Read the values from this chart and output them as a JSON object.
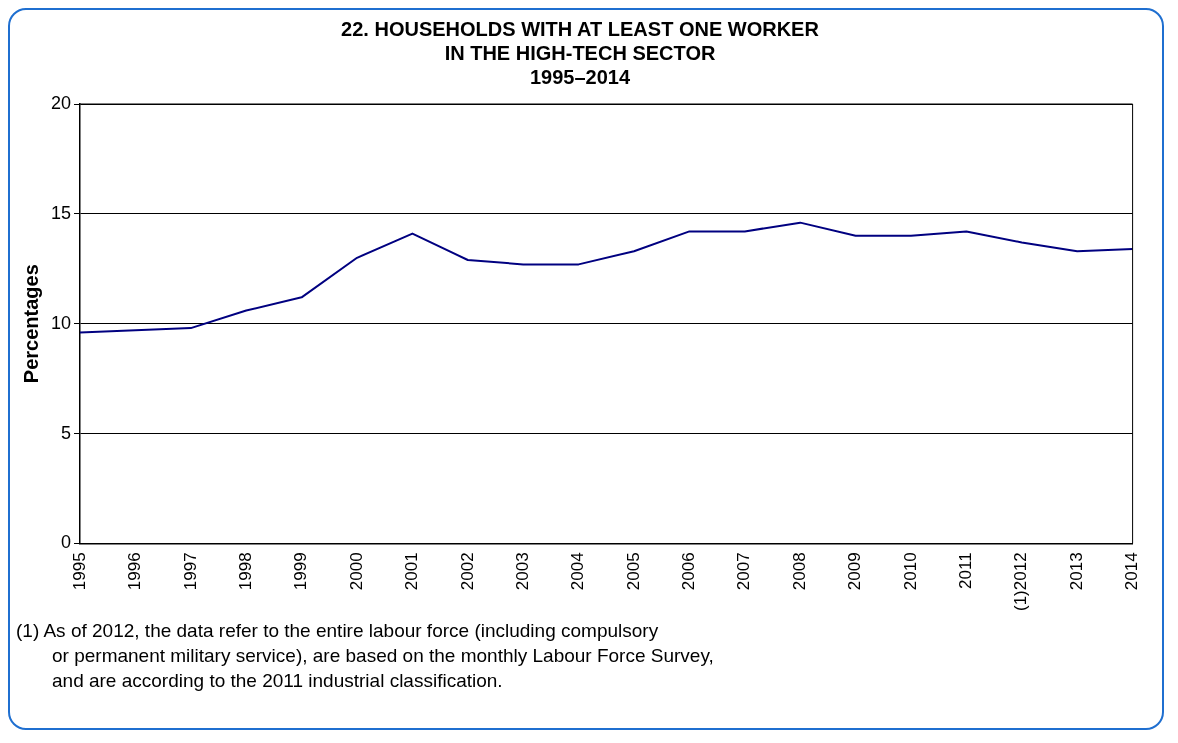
{
  "chart_data": {
    "type": "line",
    "title": "22. HOUSEHOLDS WITH AT LEAST ONE WORKER\nIN THE HIGH-TECH SECTOR\n1995–2014",
    "ylabel": "Percentages",
    "categories": [
      "1995",
      "1996",
      "1997",
      "1998",
      "1999",
      "2000",
      "2001",
      "2002",
      "2003",
      "2004",
      "2005",
      "2006",
      "2007",
      "2008",
      "2009",
      "2010",
      "2011",
      "(1)2012",
      "2013",
      "2014"
    ],
    "series": [
      {
        "color": "#000080",
        "values": [
          9.6,
          9.7,
          9.8,
          10.6,
          11.2,
          13.0,
          14.1,
          12.9,
          12.7,
          12.7,
          13.3,
          14.2,
          14.2,
          14.6,
          14.0,
          14.0,
          14.2,
          13.7,
          13.3,
          13.4
        ]
      }
    ],
    "ylim": [
      0,
      20
    ],
    "yticks": [
      0,
      5,
      10,
      15,
      20
    ],
    "grid": "y",
    "legend": false,
    "marker": "none",
    "line_style": "solid",
    "annotations": [
      "(1) As of 2012, the data refer to the entire labour force (including compulsory\nor permanent military service), are based on the monthly Labour Force Survey,\nand are according to the 2011 industrial classification."
    ]
  }
}
